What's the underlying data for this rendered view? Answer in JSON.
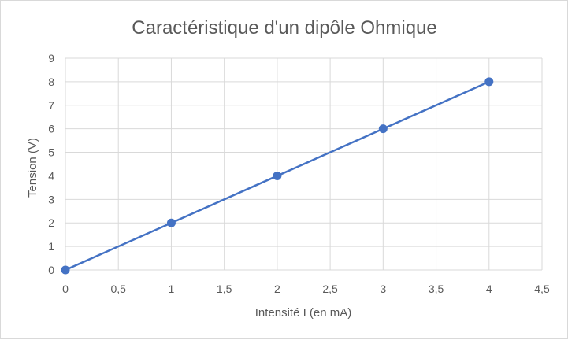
{
  "chart_data": {
    "type": "scatter",
    "title": "Caractéristique d'un dipôle Ohmique",
    "xlabel": "Intensité I (en mA)",
    "ylabel": "Tension (V)",
    "xlim": [
      0,
      4.5
    ],
    "ylim": [
      0,
      9
    ],
    "x_ticks": [
      0,
      0.5,
      1,
      1.5,
      2,
      2.5,
      3,
      3.5,
      4,
      4.5
    ],
    "x_tick_labels": [
      "0",
      "0,5",
      "1",
      "1,5",
      "2",
      "2,5",
      "3",
      "3,5",
      "4",
      "4,5"
    ],
    "y_ticks": [
      0,
      1,
      2,
      3,
      4,
      5,
      6,
      7,
      8,
      9
    ],
    "y_tick_labels": [
      "0",
      "1",
      "2",
      "3",
      "4",
      "5",
      "6",
      "7",
      "8",
      "9"
    ],
    "grid": true,
    "legend": "none",
    "series": [
      {
        "x": [
          0,
          1,
          2,
          3,
          4
        ],
        "y": [
          0,
          2,
          4,
          6,
          8
        ],
        "color": "#4472c4",
        "lines": true,
        "markers": true
      }
    ]
  }
}
